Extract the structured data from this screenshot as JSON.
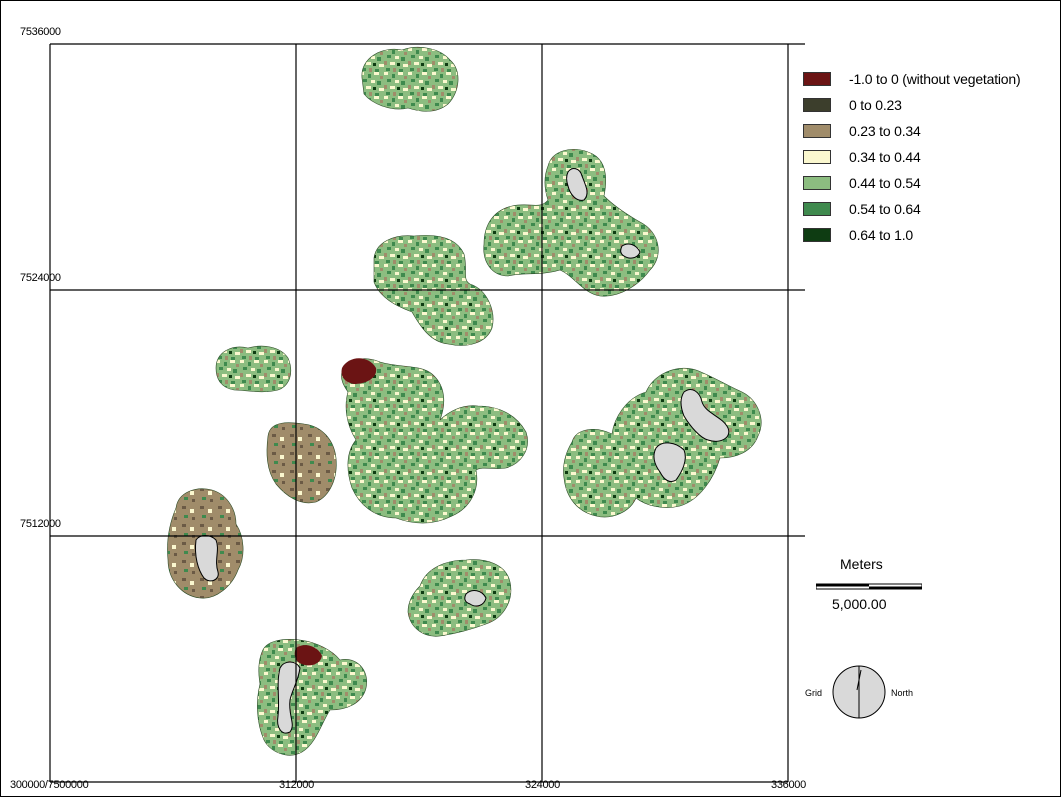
{
  "map": {
    "grid": {
      "x_ticks": [
        {
          "value": 300000,
          "label": "300000/7500000"
        },
        {
          "value": 312000,
          "label": "312000"
        },
        {
          "value": 324000,
          "label": "324000"
        },
        {
          "value": 336000,
          "label": "336000"
        }
      ],
      "y_ticks": [
        {
          "value": 7536000,
          "label": "7536000"
        },
        {
          "value": 7524000,
          "label": "7524000"
        },
        {
          "value": 7512000,
          "label": "7512000"
        }
      ],
      "x_range": [
        300000,
        336000
      ],
      "y_range": [
        7500000,
        7536000
      ]
    },
    "colors": {
      "grid": "#000000",
      "background": "#ffffff",
      "no_data": "#d9d9d9"
    }
  },
  "legend": {
    "items": [
      {
        "label": "-1.0 to 0 (without vegetation)",
        "color": "#6b1414"
      },
      {
        "label": "0  to 0.23",
        "color": "#3c3e2c"
      },
      {
        "label": "0.23 to 0.34",
        "color": "#a08c6a"
      },
      {
        "label": "0.34 to 0.44",
        "color": "#fbf8cf"
      },
      {
        "label": "0.44 to 0.54",
        "color": "#8cbd80"
      },
      {
        "label": "0.54 to 0.64",
        "color": "#3f8a4e"
      },
      {
        "label": "0.64 to 1.0",
        "color": "#0e3c12"
      }
    ]
  },
  "scale_bar": {
    "title": "Meters",
    "value": "5,000.00"
  },
  "north_arrow": {
    "left_label": "Grid",
    "right_label": "North"
  }
}
